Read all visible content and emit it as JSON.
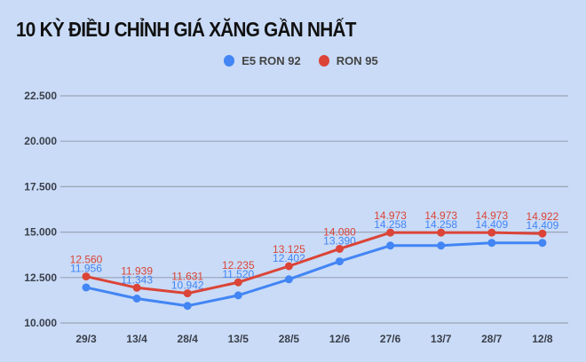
{
  "chart_data": {
    "type": "line",
    "title": "10 KỲ ĐIỀU CHỈNH GIÁ XĂNG GẦN NHẤT",
    "categories": [
      "29/3",
      "13/4",
      "28/4",
      "13/5",
      "28/5",
      "12/6",
      "27/6",
      "13/7",
      "28/7",
      "12/8"
    ],
    "series": [
      {
        "name": "E5 RON 92",
        "color": "#4285f4",
        "values": [
          11956,
          11343,
          10942,
          11520,
          12402,
          13390,
          14258,
          14258,
          14409,
          14409
        ],
        "labels": [
          "11.956",
          "11.343",
          "10.942",
          "11.520",
          "12.402",
          "13.390",
          "14.258",
          "14.258",
          "14.409",
          "14.409"
        ]
      },
      {
        "name": "RON 95",
        "color": "#db4437",
        "values": [
          12560,
          11939,
          11631,
          12235,
          13125,
          14080,
          14973,
          14973,
          14973,
          14922
        ],
        "labels": [
          "12.560",
          "11.939",
          "11.631",
          "12.235",
          "13.125",
          "14.080",
          "14.973",
          "14.973",
          "14.973",
          "14.922"
        ]
      }
    ],
    "yticks": [
      10000,
      12500,
      15000,
      17500,
      20000,
      22500
    ],
    "ytick_labels": [
      "10.000",
      "12.500",
      "15.000",
      "17.500",
      "20.000",
      "22.500"
    ],
    "ylim": [
      10000,
      22500
    ],
    "grid": true,
    "legend_position": "top-center"
  }
}
